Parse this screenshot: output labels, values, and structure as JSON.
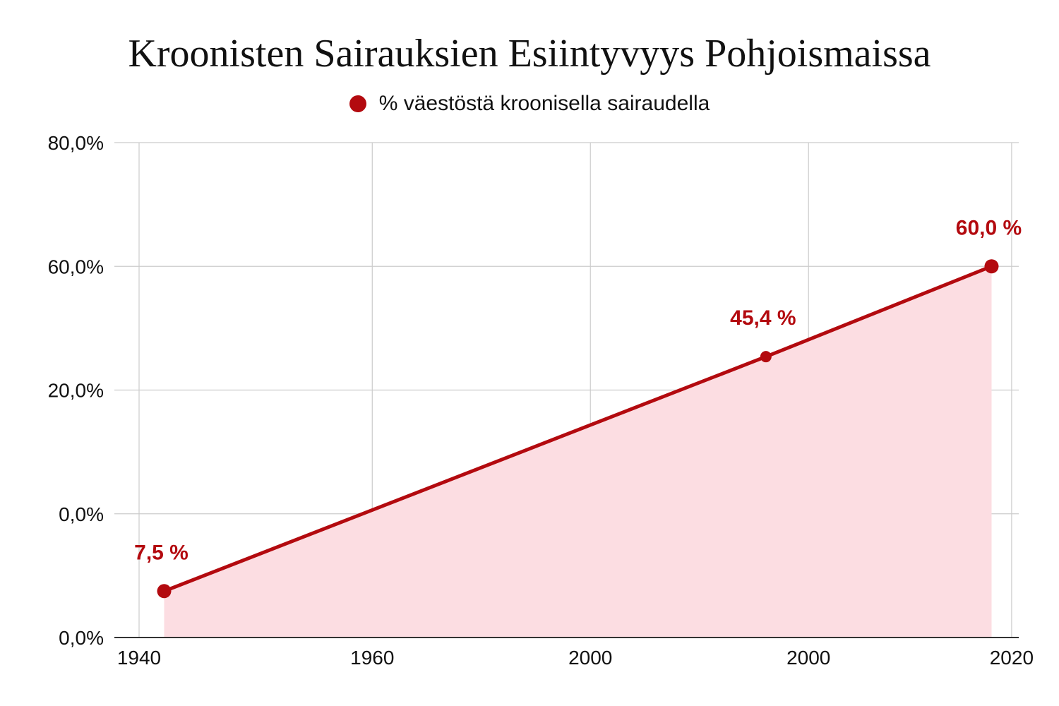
{
  "chart_data": {
    "type": "area",
    "title": "Kroonisten Sairauksien Esiintyvyys Pohjoismaissa",
    "series": [
      {
        "name": "% väestöstä kroonisella sairaudella",
        "points": [
          {
            "x_pos": 1,
            "y_pos": 7.5,
            "label": "7,5 %"
          },
          {
            "x_pos": 25,
            "y_pos": 45.4,
            "label": "45,4 %"
          },
          {
            "x_pos": 34,
            "y_pos": 60.0,
            "label": "60,0 %"
          }
        ]
      }
    ],
    "x_ticks": [
      {
        "label": "1940",
        "pos": 0
      },
      {
        "label": "1960",
        "pos": 9.3
      },
      {
        "label": "2000",
        "pos": 18
      },
      {
        "label": "2000",
        "pos": 26.7
      },
      {
        "label": "2020",
        "pos": 34.8
      }
    ],
    "y_ticks": [
      "0,0%",
      "0,0%",
      "20,0%",
      "60,0%",
      "80,0%"
    ],
    "grid": true,
    "legend_position": "top-center",
    "colors": {
      "line": "#b30a0f",
      "fill": "#fcdde2",
      "label": "#b30a0f",
      "grid": "#cccccc",
      "axis": "#333333"
    }
  }
}
